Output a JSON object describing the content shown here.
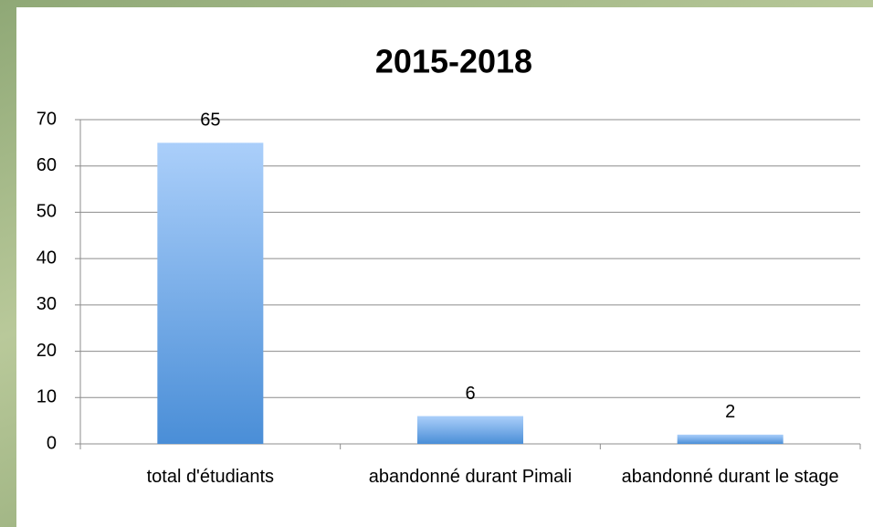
{
  "chart_data": {
    "type": "bar",
    "title": "2015-2018",
    "categories": [
      "total d'étudiants",
      "abandonné durant Pimali",
      "abandonné durant le stage"
    ],
    "values": [
      65,
      6,
      2
    ],
    "ylim": [
      0,
      70
    ],
    "yticks": [
      0,
      10,
      20,
      30,
      40,
      50,
      60,
      70
    ],
    "grid": true
  }
}
